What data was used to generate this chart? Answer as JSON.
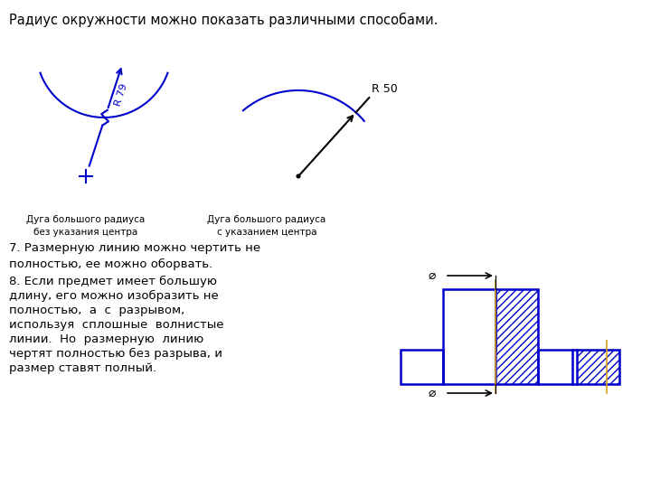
{
  "title_text": "Радиус окружности можно показать различными способами.",
  "text7": "7. Размерную линию можно чертить не\nполностью, ее можно оборвать.",
  "text8_line1": "8. Если предмет имеет большую",
  "text8_line2": "длину, его можно изобразить не",
  "text8_line3": "полностью,  а  с  разрывом,",
  "text8_line4": "используя  сплошные  волнистые",
  "text8_line5": "линии.  Но  размерную  линию",
  "text8_line6": "чертят полностью без разрыва, и",
  "text8_line7": "размер ставят полный.",
  "label1": "Дуга большого радиуса\nбез указания центра",
  "label2": "Дуга большого радиуса\nс указанием центра",
  "blue_color": "#0000CC",
  "black_color": "#000000",
  "orange_color": "#D4A017",
  "bg_color": "#FFFFFF",
  "font_size_title": 10.5,
  "font_size_label": 7.5,
  "font_size_text": 9.5
}
